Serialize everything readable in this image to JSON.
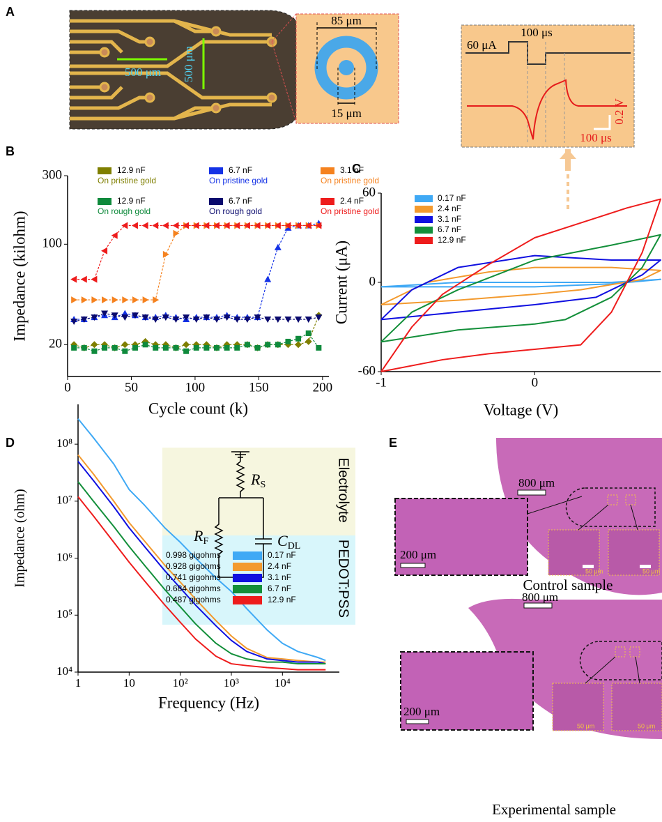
{
  "figure": {
    "panel_labels": [
      "A",
      "B",
      "C",
      "D",
      "E"
    ],
    "photo": {
      "pitch_x": "500 μm",
      "pitch_y": "500 μm",
      "outer_diameter": "85 μm",
      "inner_diameter": "15 μm"
    },
    "pulse": {
      "current": "60 μA",
      "width": "100 μs",
      "scale_v": "0.2 V",
      "scale_t": "100 μs"
    },
    "circuit": {
      "rs": {
        "symbol": "R",
        "subscript": "S"
      },
      "rf": {
        "symbol": "R",
        "subscript": "F"
      },
      "cdl": {
        "symbol": "C",
        "subscript": "DL"
      },
      "electrolyte": "Electrolyte",
      "film": "PEDOT:PSS"
    },
    "histology": {
      "control": {
        "caption": "Control sample",
        "scale_large": "800 μm",
        "scale_zoom": "200 μm",
        "scale_small": [
          "50 μm",
          "50 μm"
        ]
      },
      "experimental": {
        "caption": "Experimental sample",
        "scale_large": "800 μm",
        "scale_zoom": "200 μm",
        "scale_small": [
          "50 μm",
          "50 μm"
        ]
      }
    }
  },
  "chart_data": [
    {
      "type": "line",
      "xlabel": "Cycle count (k)",
      "ylabel": "Impedance (kilohm)",
      "log_y": true,
      "x": [
        5,
        13,
        21,
        29,
        37,
        45,
        53,
        61,
        69,
        77,
        85,
        93,
        101,
        109,
        117,
        125,
        133,
        141,
        149,
        157,
        165,
        173,
        181,
        189,
        197
      ],
      "xlim": [
        0,
        205
      ],
      "xticks": [
        0,
        50,
        100,
        150,
        200
      ],
      "ylim": [
        12,
        300
      ],
      "yticks": [
        20,
        100,
        300
      ],
      "series": [
        {
          "name": "12.9 nF",
          "substrate": "On pristine gold",
          "color": "#7f7f00",
          "marker": "diamond",
          "values": [
            20,
            19,
            20,
            20,
            19,
            20,
            20,
            21,
            20,
            20,
            19,
            20,
            20,
            20,
            19,
            20,
            20,
            20,
            19,
            20,
            20,
            20,
            20,
            21,
            32
          ]
        },
        {
          "name": "6.7 nF",
          "substrate": "On pristine gold",
          "color": "#1432e6",
          "marker": "triangle-up",
          "values": [
            30,
            30,
            31,
            32,
            31,
            33,
            32,
            31,
            31,
            32,
            31,
            30,
            31,
            31,
            31,
            32,
            31,
            31,
            31,
            57,
            95,
            130,
            135,
            135,
            140
          ]
        },
        {
          "name": "3.1 nF",
          "substrate": "On pristine gold",
          "color": "#f5821f",
          "marker": "triangle-right",
          "values": [
            41,
            41,
            41,
            41,
            41,
            41,
            41,
            41,
            41,
            85,
            119,
            135,
            135,
            135,
            135,
            135,
            135,
            135,
            135,
            135,
            135,
            135,
            135,
            135,
            135
          ]
        },
        {
          "name": "12.9 nF",
          "substrate": "On rough gold",
          "color": "#0f8a3c",
          "marker": "square",
          "values": [
            19,
            19,
            18,
            19,
            19,
            18,
            19,
            20,
            19,
            19,
            19,
            18,
            19,
            19,
            19,
            19,
            19,
            20,
            19,
            20,
            20,
            21,
            22,
            24,
            19
          ]
        },
        {
          "name": "6.7 nF",
          "substrate": "On rough gold",
          "color": "#0a0a6e",
          "marker": "triangle-down",
          "values": [
            29,
            30,
            31,
            33,
            32,
            31,
            32,
            31,
            30,
            31,
            30,
            31,
            30,
            31,
            30,
            31,
            30,
            30,
            31,
            30,
            30,
            30,
            30,
            30,
            31
          ]
        },
        {
          "name": "2.4 nF",
          "substrate": "On pristine gold",
          "color": "#ee1c1c",
          "marker": "triangle-left",
          "values": [
            57,
            57,
            57,
            90,
            115,
            135,
            135,
            135,
            135,
            135,
            135,
            135,
            135,
            135,
            135,
            135,
            135,
            135,
            135,
            135,
            135,
            135,
            135,
            135,
            135
          ]
        }
      ]
    },
    {
      "type": "line",
      "xlabel": "Voltage (V)",
      "ylabel": "Current (μA)",
      "xlim": [
        -1,
        0.82
      ],
      "xticks": [
        -1,
        0
      ],
      "ylim": [
        -60,
        60
      ],
      "yticks": [
        -60,
        0,
        60
      ],
      "series": [
        {
          "name": "0.17 nF",
          "color": "#3fa9f5",
          "x": [
            -1,
            -0.5,
            0,
            0.5,
            0.82,
            0.5,
            0,
            -0.5,
            -1
          ],
          "values": [
            -3,
            0,
            0,
            0,
            2,
            -1,
            -3,
            -3,
            -3
          ]
        },
        {
          "name": "2.4 nF",
          "color": "#f39a2e",
          "x": [
            -1,
            -0.7,
            -0.3,
            0,
            0.5,
            0.82,
            0.7,
            0.3,
            0,
            -0.5,
            -1
          ],
          "values": [
            -15,
            0,
            7,
            10,
            10,
            8,
            2,
            -5,
            -8,
            -12,
            -15
          ]
        },
        {
          "name": "3.1 nF",
          "color": "#1010e0",
          "x": [
            -1,
            -0.8,
            -0.5,
            0,
            0.5,
            0.82,
            0.7,
            0.4,
            0,
            -0.5,
            -1
          ],
          "values": [
            -25,
            -5,
            10,
            18,
            15,
            15,
            5,
            -10,
            -15,
            -20,
            -25
          ]
        },
        {
          "name": "6.7 nF",
          "color": "#138f3a",
          "x": [
            -1,
            -0.8,
            -0.5,
            0,
            0.5,
            0.82,
            0.7,
            0.5,
            0.2,
            0,
            -0.5,
            -1
          ],
          "values": [
            -40,
            -20,
            -5,
            15,
            25,
            32,
            10,
            -10,
            -25,
            -28,
            -32,
            -40
          ]
        },
        {
          "name": "12.9 nF",
          "color": "#ee1c1c",
          "x": [
            -1,
            -0.8,
            -0.6,
            -0.3,
            0,
            0.3,
            0.6,
            0.82,
            0.7,
            0.5,
            0.3,
            0,
            -0.3,
            -0.6,
            -1
          ],
          "values": [
            -60,
            -30,
            -8,
            12,
            30,
            40,
            50,
            56,
            20,
            -20,
            -42,
            -45,
            -48,
            -52,
            -60
          ]
        }
      ]
    },
    {
      "type": "line",
      "xlabel": "Frequency (Hz)",
      "ylabel": "Impedance (ohm)",
      "log_x": true,
      "log_y": true,
      "x": [
        1,
        2,
        5,
        10,
        20,
        50,
        100,
        200,
        500,
        1000,
        2000,
        5000,
        10000,
        20000,
        50000,
        70000
      ],
      "xlim": [
        1,
        130000
      ],
      "xticks": [
        1,
        10,
        {
          "value": 100,
          "label": "10²"
        },
        {
          "value": 1000,
          "label": "10³"
        },
        {
          "value": 10000,
          "label": "10⁴"
        }
      ],
      "ylim": [
        10000,
        500000000
      ],
      "yticks": [
        {
          "value": 10000,
          "label": "10⁴"
        },
        {
          "value": 100000,
          "label": "10⁵"
        },
        {
          "value": 1000000,
          "label": "10⁶"
        },
        {
          "value": 10000000,
          "label": "10⁷"
        },
        {
          "value": 100000000,
          "label": "10⁸"
        }
      ],
      "series": [
        {
          "name": "0.17 nF",
          "resistance": "0.998 gigohms",
          "color": "#3fa9f5",
          "values": [
            280000000,
            130000000,
            45000000,
            16000000,
            8500000,
            3400000,
            1900000,
            1000000,
            450000,
            260000,
            130000,
            55000,
            32000,
            23000,
            18000,
            16000
          ]
        },
        {
          "name": "2.4 nF",
          "resistance": "0.928 gigohms",
          "color": "#f39a2e",
          "values": [
            65000000,
            30000000,
            10000000,
            4200000,
            2000000,
            750000,
            380000,
            190000,
            80000,
            43000,
            26000,
            18000,
            17000,
            16000,
            15000,
            15000
          ]
        },
        {
          "name": "3.1 nF",
          "resistance": "0.741 gigohms",
          "color": "#1010e0",
          "values": [
            50000000,
            23000000,
            8000000,
            3400000,
            1600000,
            600000,
            300000,
            150000,
            65000,
            36000,
            23000,
            17000,
            16000,
            15000,
            15000,
            14000
          ]
        },
        {
          "name": "6.7 nF",
          "resistance": "0.684 gigohms",
          "color": "#138f3a",
          "values": [
            22000000,
            10000000,
            3600000,
            1600000,
            750000,
            280000,
            140000,
            70000,
            32000,
            21000,
            17000,
            15000,
            15000,
            14000,
            14000,
            14000
          ]
        },
        {
          "name": "12.9 nF",
          "resistance": "0.487 gigohms",
          "color": "#ee1c1c",
          "values": [
            12000000,
            5500000,
            1900000,
            850000,
            400000,
            150000,
            75000,
            38000,
            19000,
            14000,
            13000,
            12000,
            11500,
            11000,
            11000,
            11000
          ]
        }
      ]
    }
  ]
}
